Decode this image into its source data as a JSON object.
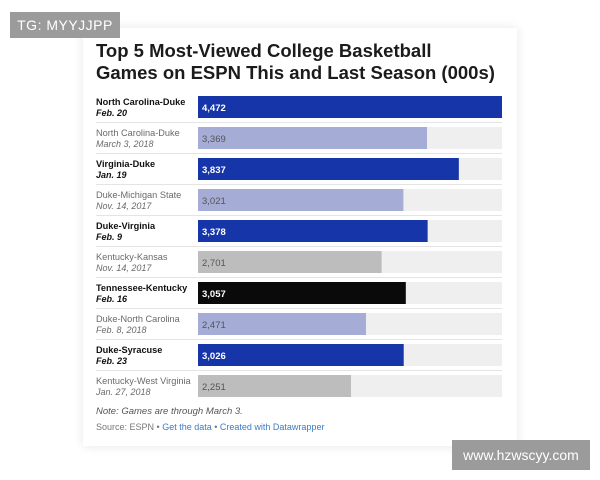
{
  "watermarks": {
    "top_left": "TG: MYYJJPP",
    "bottom_right": "www.hzwscyy.com"
  },
  "chart_data": {
    "type": "bar",
    "orientation": "horizontal",
    "title": "Top 5 Most-Viewed College Basketball Games on ESPN This and Last Season (000s)",
    "xlim": [
      0,
      4472
    ],
    "grid": false,
    "legend": "none",
    "categories": [
      {
        "name": "North Carolina-Duke",
        "date": "Feb. 20",
        "value": 4472,
        "label": "4,472",
        "highlight": true,
        "color": "#1535a8"
      },
      {
        "name": "North Carolina-Duke",
        "date": "March 3, 2018",
        "value": 3369,
        "label": "3,369",
        "highlight": false,
        "color": "#a5acd6"
      },
      {
        "name": "Virginia-Duke",
        "date": "Jan. 19",
        "value": 3837,
        "label": "3,837",
        "highlight": true,
        "color": "#1535a8"
      },
      {
        "name": "Duke-Michigan State",
        "date": "Nov. 14, 2017",
        "value": 3021,
        "label": "3,021",
        "highlight": false,
        "color": "#a5acd6"
      },
      {
        "name": "Duke-Virginia",
        "date": "Feb. 9",
        "value": 3378,
        "label": "3,378",
        "highlight": true,
        "color": "#1535a8"
      },
      {
        "name": "Kentucky-Kansas",
        "date": "Nov. 14, 2017",
        "value": 2701,
        "label": "2,701",
        "highlight": false,
        "color": "#bdbdbd"
      },
      {
        "name": "Tennessee-Kentucky",
        "date": "Feb. 16",
        "value": 3057,
        "label": "3,057",
        "highlight": true,
        "color": "#0a0a0a"
      },
      {
        "name": "Duke-North Carolina",
        "date": "Feb. 8, 2018",
        "value": 2471,
        "label": "2,471",
        "highlight": false,
        "color": "#a5acd6"
      },
      {
        "name": "Duke-Syracuse",
        "date": "Feb. 23",
        "value": 3026,
        "label": "3,026",
        "highlight": true,
        "color": "#1535a8"
      },
      {
        "name": "Kentucky-West Virginia",
        "date": "Jan. 27, 2018",
        "value": 2251,
        "label": "2,251",
        "highlight": false,
        "color": "#bdbdbd"
      }
    ]
  },
  "footer": {
    "note": "Note: Games are through March 3.",
    "source_prefix": "Source: ESPN",
    "sep1": " • ",
    "get_data": "Get the data",
    "sep2": " • ",
    "created_with": "Created with Datawrapper"
  },
  "colors": {
    "highlight_bar": "#1535a8",
    "previous_bar": "#a5acd6",
    "grey_bar": "#bdbdbd",
    "track": "#efefef"
  }
}
